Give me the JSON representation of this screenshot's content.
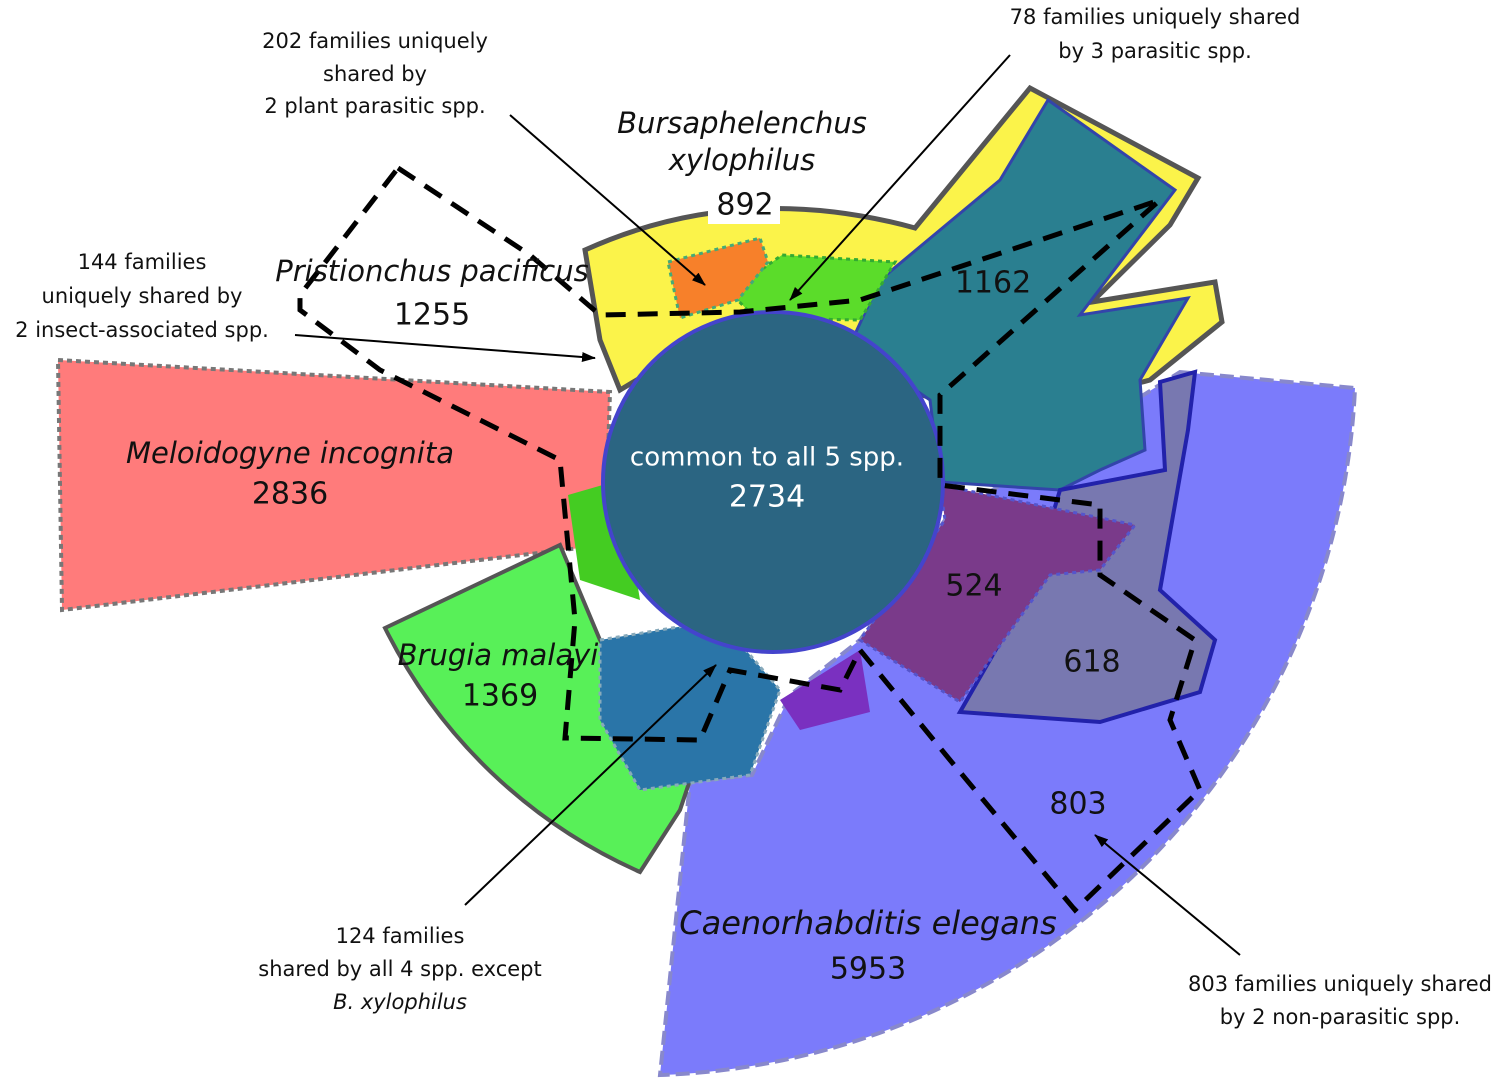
{
  "center": {
    "label": "common to all 5 spp.",
    "count": 2734
  },
  "species": [
    {
      "name": [
        "Bursaphelenchus",
        "xylophilus"
      ],
      "count": 892
    },
    {
      "name": [
        "Pristionchus pacificus"
      ],
      "count": 1255
    },
    {
      "name": [
        "Meloidogyne incognita"
      ],
      "count": 2836
    },
    {
      "name": [
        "Brugia malayi"
      ],
      "count": 1369
    },
    {
      "name": [
        "Caenorhabditis elegans"
      ],
      "count": 5953
    }
  ],
  "regions": [
    1162,
    524,
    618,
    803
  ],
  "annotations": [
    {
      "lines": [
        "202 families uniquely",
        "shared by",
        "2 plant parasitic spp."
      ]
    },
    {
      "lines": [
        "78 families uniquely shared",
        "by 3 parasitic spp."
      ]
    },
    {
      "lines": [
        "144 families",
        "uniquely shared by",
        "2 insect-associated spp."
      ]
    },
    {
      "lines": [
        "124 families",
        "shared by all 4 spp. except",
        "B. xylophilus"
      ]
    },
    {
      "lines": [
        "803 families uniquely shared",
        "by 2 non-parasitic spp."
      ]
    }
  ]
}
